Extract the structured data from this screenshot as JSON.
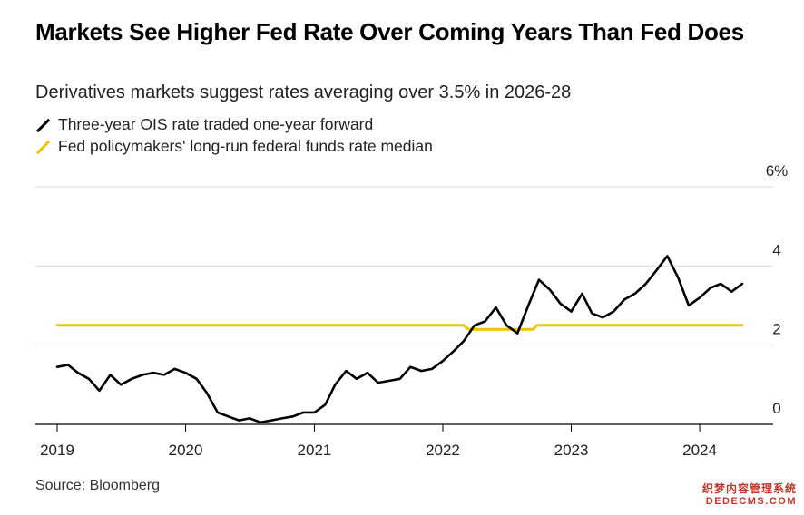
{
  "title": "Markets See Higher Fed Rate Over Coming Years Than Fed Does",
  "subtitle": "Derivatives markets suggest rates averaging over 3.5% in 2026-28",
  "source": "Source: Bloomberg",
  "watermark": {
    "line1": "织梦内容管理系统",
    "line2": "DEDECMS.COM"
  },
  "colors": {
    "ois": "#000000",
    "fed": "#f2c200",
    "grid": "#d9d9d9",
    "axis": "#000000"
  },
  "chart_data": {
    "type": "line",
    "title": "Markets See Higher Fed Rate Over Coming Years Than Fed Does",
    "xlabel": "",
    "ylabel": "",
    "ylim": [
      0,
      6
    ],
    "xlim": [
      "2019-01-01",
      "2024-08-01"
    ],
    "y_ticks": [
      {
        "value": 0,
        "label": "0"
      },
      {
        "value": 2,
        "label": "2"
      },
      {
        "value": 4,
        "label": "4"
      },
      {
        "value": 6,
        "label": "6%"
      }
    ],
    "x_ticks": [
      {
        "value": "2019-01-01",
        "label": "2019"
      },
      {
        "value": "2020-01-01",
        "label": "2020"
      },
      {
        "value": "2021-01-01",
        "label": "2021"
      },
      {
        "value": "2022-01-01",
        "label": "2022"
      },
      {
        "value": "2023-01-01",
        "label": "2023"
      },
      {
        "value": "2024-01-01",
        "label": "2024"
      }
    ],
    "grid": true,
    "legend_position": "top-left",
    "series": [
      {
        "name": "Three-year OIS rate traded one-year forward",
        "color": "#000000",
        "points": [
          [
            "2019-01-01",
            1.45
          ],
          [
            "2019-02-01",
            1.5
          ],
          [
            "2019-03-01",
            1.3
          ],
          [
            "2019-04-01",
            1.15
          ],
          [
            "2019-05-01",
            0.85
          ],
          [
            "2019-06-01",
            1.25
          ],
          [
            "2019-07-01",
            1.0
          ],
          [
            "2019-08-01",
            1.15
          ],
          [
            "2019-09-01",
            1.25
          ],
          [
            "2019-10-01",
            1.3
          ],
          [
            "2019-11-01",
            1.25
          ],
          [
            "2019-12-01",
            1.4
          ],
          [
            "2020-01-01",
            1.3
          ],
          [
            "2020-02-01",
            1.15
          ],
          [
            "2020-03-01",
            0.8
          ],
          [
            "2020-04-01",
            0.3
          ],
          [
            "2020-05-01",
            0.2
          ],
          [
            "2020-06-01",
            0.1
          ],
          [
            "2020-07-01",
            0.15
          ],
          [
            "2020-08-01",
            0.05
          ],
          [
            "2020-09-01",
            0.1
          ],
          [
            "2020-10-01",
            0.15
          ],
          [
            "2020-11-01",
            0.2
          ],
          [
            "2020-12-01",
            0.3
          ],
          [
            "2021-01-01",
            0.3
          ],
          [
            "2021-02-01",
            0.5
          ],
          [
            "2021-03-01",
            1.0
          ],
          [
            "2021-04-01",
            1.35
          ],
          [
            "2021-05-01",
            1.15
          ],
          [
            "2021-06-01",
            1.3
          ],
          [
            "2021-07-01",
            1.05
          ],
          [
            "2021-08-01",
            1.1
          ],
          [
            "2021-09-01",
            1.15
          ],
          [
            "2021-10-01",
            1.45
          ],
          [
            "2021-11-01",
            1.35
          ],
          [
            "2021-12-01",
            1.4
          ],
          [
            "2022-01-01",
            1.6
          ],
          [
            "2022-02-01",
            1.85
          ],
          [
            "2022-03-01",
            2.1
          ],
          [
            "2022-04-01",
            2.5
          ],
          [
            "2022-05-01",
            2.6
          ],
          [
            "2022-06-01",
            2.95
          ],
          [
            "2022-07-01",
            2.5
          ],
          [
            "2022-08-01",
            2.3
          ],
          [
            "2022-09-01",
            3.0
          ],
          [
            "2022-10-01",
            3.65
          ],
          [
            "2022-11-01",
            3.4
          ],
          [
            "2022-12-01",
            3.05
          ],
          [
            "2023-01-01",
            2.85
          ],
          [
            "2023-02-01",
            3.3
          ],
          [
            "2023-03-01",
            2.8
          ],
          [
            "2023-04-01",
            2.7
          ],
          [
            "2023-05-01",
            2.85
          ],
          [
            "2023-06-01",
            3.15
          ],
          [
            "2023-07-01",
            3.3
          ],
          [
            "2023-08-01",
            3.55
          ],
          [
            "2023-09-01",
            3.9
          ],
          [
            "2023-10-01",
            4.25
          ],
          [
            "2023-11-01",
            3.7
          ],
          [
            "2023-12-01",
            3.0
          ],
          [
            "2024-01-01",
            3.2
          ],
          [
            "2024-02-01",
            3.45
          ],
          [
            "2024-03-01",
            3.55
          ],
          [
            "2024-04-01",
            3.35
          ],
          [
            "2024-05-01",
            3.55
          ]
        ]
      },
      {
        "name": "Fed policymakers' long-run federal funds rate median",
        "color": "#f2c200",
        "points": [
          [
            "2019-01-01",
            2.5
          ],
          [
            "2022-03-01",
            2.5
          ],
          [
            "2022-03-15",
            2.4
          ],
          [
            "2022-09-15",
            2.4
          ],
          [
            "2022-09-25",
            2.5
          ],
          [
            "2024-05-01",
            2.5
          ]
        ]
      }
    ]
  }
}
